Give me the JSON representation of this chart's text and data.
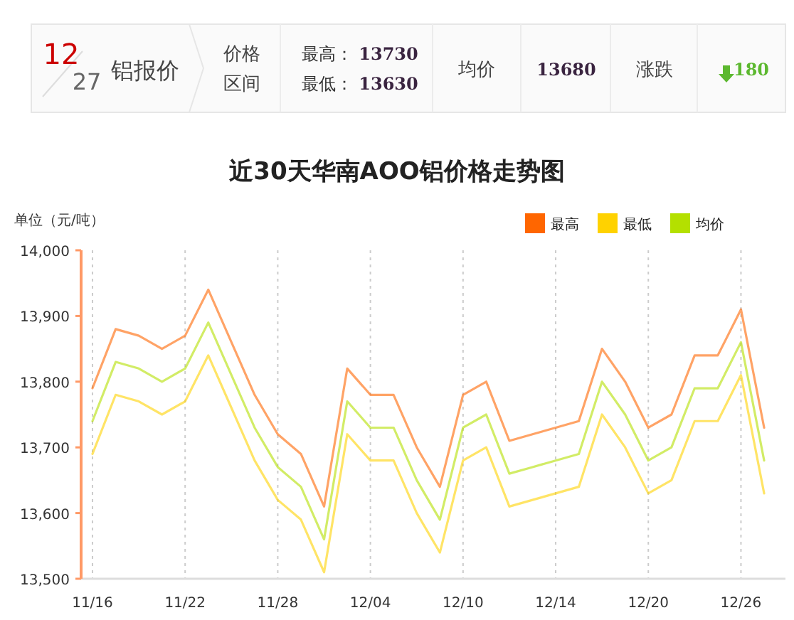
{
  "chart_data": [
    {
      "type": "other",
      "annotations": [
        "12",
        "27",
        "铝报价",
        "价格",
        "区间",
        "最高：",
        "13730",
        "最低：",
        "13630",
        "均价",
        "13680",
        "涨跌",
        "180"
      ]
    },
    {
      "type": "line",
      "title": "近30天华南AOO铝价格走势图",
      "ylabel": "单位（元/吨）",
      "categories": [
        "11/16",
        null,
        null,
        null,
        "11/22",
        null,
        null,
        null,
        "11/28",
        null,
        null,
        null,
        "12/04",
        null,
        null,
        null,
        "12/10",
        null,
        null,
        null,
        "12/14",
        null,
        null,
        null,
        "12/20",
        null,
        null,
        null,
        "12/26",
        null
      ],
      "series": [
        {
          "name": "最高",
          "color": "#ff6600",
          "values": [
            13790,
            13880,
            13870,
            13850,
            13870,
            13940,
            13860,
            13780,
            13720,
            13690,
            13610,
            13820,
            13780,
            13780,
            13700,
            13640,
            13780,
            13800,
            13710,
            13720,
            13730,
            13740,
            13850,
            13800,
            13730,
            13750,
            13840,
            13840,
            13910,
            13730
          ]
        },
        {
          "name": "最低",
          "color": "#ffd200",
          "values": [
            13690,
            13780,
            13770,
            13750,
            13770,
            13840,
            13760,
            13680,
            13620,
            13590,
            13510,
            13720,
            13680,
            13680,
            13600,
            13540,
            13680,
            13700,
            13610,
            13620,
            13630,
            13640,
            13750,
            13700,
            13630,
            13650,
            13740,
            13740,
            13810,
            13630
          ]
        },
        {
          "name": "均价",
          "color": "#b4e000",
          "values": [
            13740,
            13830,
            13820,
            13800,
            13820,
            13890,
            13810,
            13730,
            13670,
            13640,
            13560,
            13770,
            13730,
            13730,
            13650,
            13590,
            13730,
            13750,
            13660,
            13670,
            13680,
            13690,
            13800,
            13750,
            13680,
            13700,
            13790,
            13790,
            13860,
            13680
          ]
        }
      ],
      "ylim": [
        13500,
        14000
      ],
      "yticks": [
        {
          "value": 13500,
          "label": "13,500"
        },
        {
          "value": 13600,
          "label": "13,600"
        },
        {
          "value": 13700,
          "label": "13,700"
        },
        {
          "value": 13800,
          "label": "13,800"
        },
        {
          "value": 13900,
          "label": "13,900"
        },
        {
          "value": 14000,
          "label": "14,000"
        }
      ],
      "grid": "x",
      "legend": "top right",
      "marker": "none",
      "line_style": "solid"
    }
  ]
}
